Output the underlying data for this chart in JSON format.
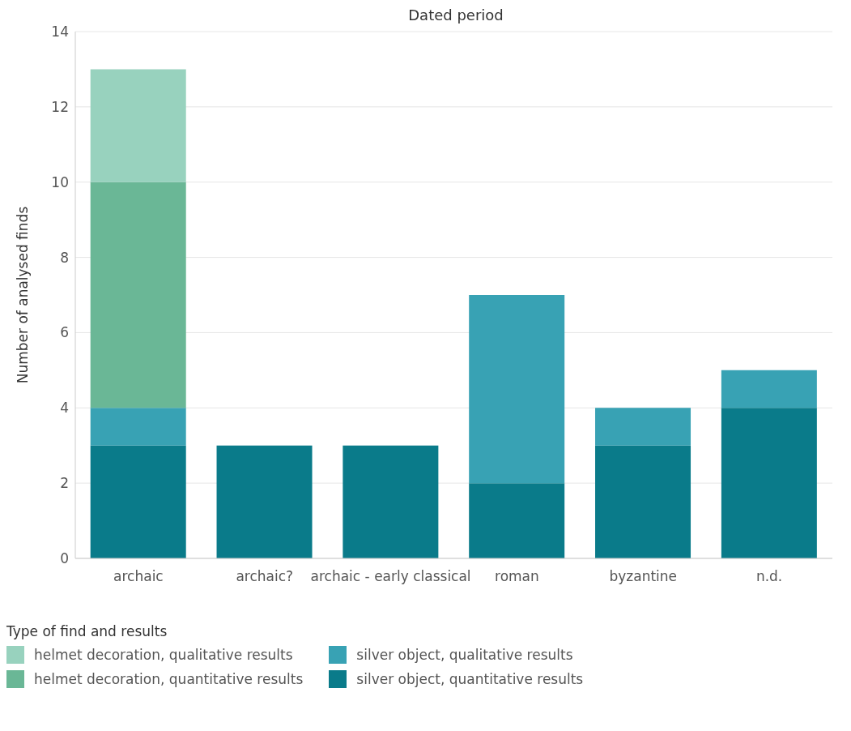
{
  "chart_data": {
    "type": "bar",
    "title": "Dated period",
    "ylabel": "Number of analysed finds",
    "legend_title": "Type of find and results",
    "categories": [
      "archaic",
      "archaic?",
      "archaic - early classical",
      "roman",
      "byzantine",
      "n.d."
    ],
    "stacked": true,
    "ylim": [
      0,
      14
    ],
    "yticks": [
      0,
      2,
      4,
      6,
      8,
      10,
      12,
      14
    ],
    "grid": "y",
    "legend": "bottom left",
    "series": [
      {
        "name": "silver object, quantitative results",
        "color": "#0a7b8a",
        "values": [
          3,
          3,
          3,
          2,
          3,
          4
        ]
      },
      {
        "name": "silver object, qualitative results",
        "color": "#38a2b4",
        "values": [
          1,
          0,
          0,
          5,
          1,
          1
        ]
      },
      {
        "name": "helmet decoration, quantitative results",
        "color": "#6ab796",
        "values": [
          6,
          0,
          0,
          0,
          0,
          0
        ]
      },
      {
        "name": "helmet decoration, qualitative results",
        "color": "#98d2be",
        "values": [
          3,
          0,
          0,
          0,
          0,
          0
        ]
      }
    ]
  }
}
